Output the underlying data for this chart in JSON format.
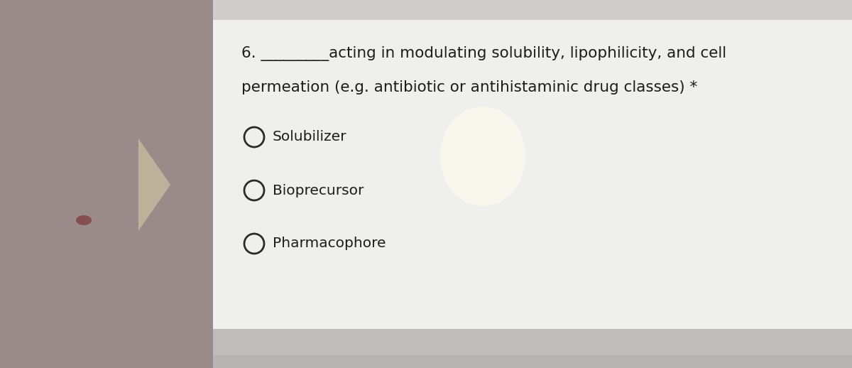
{
  "bg_outer": "#a89898",
  "bg_left": "#9a8a8a",
  "bg_card": "#efefed",
  "bg_bottom_strip": "#c0bcbc",
  "bg_top_strip": "#d0cccc",
  "question_line1": "6. _________acting in modulating solubility, lipophilicity, and cell",
  "question_line2": "permeation (e.g. antibiotic or antihistaminic drug classes) *",
  "options": [
    "Solubilizer",
    "Bioprecursor",
    "Pharmacophore"
  ],
  "text_color": "#1c1c1c",
  "circle_edge_color": "#2a2a2a",
  "font_size_question": 15.5,
  "font_size_options": 14.5,
  "glare_color": "#fffff0",
  "arrow_color": "#c8c0a0",
  "dot_color": "#7a3030"
}
